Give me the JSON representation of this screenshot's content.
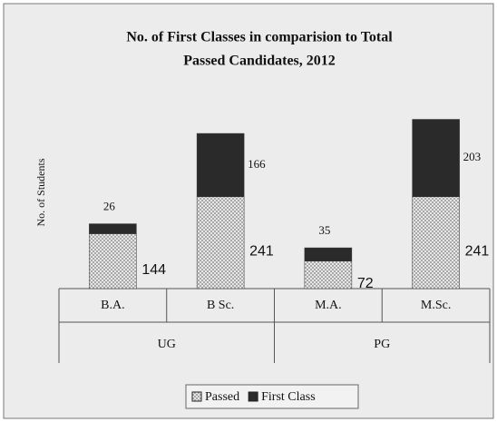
{
  "chart_data": {
    "type": "stacked-bar",
    "title": [
      "No. of First Classes in comparision to Total",
      "Passed Candidates, 2012"
    ],
    "y_label": "No. of Students",
    "groups": [
      {
        "name": "UG",
        "categories": [
          "B.A.",
          "B Sc."
        ]
      },
      {
        "name": "PG",
        "categories": [
          "M.A.",
          "M.Sc."
        ]
      }
    ],
    "series": [
      {
        "name": "Passed",
        "color": "#a8a8a8",
        "values": [
          144,
          241,
          72,
          241
        ]
      },
      {
        "name": "First Class",
        "color": "#2a2a2a",
        "values": [
          26,
          166,
          35,
          203
        ]
      }
    ]
  }
}
